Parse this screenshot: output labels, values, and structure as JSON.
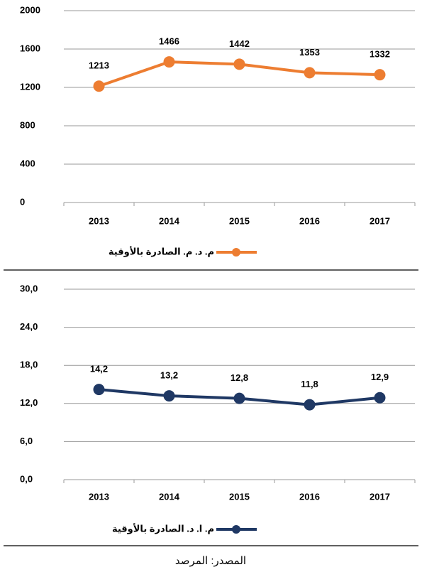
{
  "chart_data": [
    {
      "type": "line",
      "categories": [
        "2013",
        "2014",
        "2015",
        "2016",
        "2017"
      ],
      "series": [
        {
          "name": "م. د. م. الصادرة بالأوقية",
          "color": "#ED7D31",
          "values": [
            1213,
            1466,
            1442,
            1353,
            1332
          ]
        }
      ],
      "ylim": [
        0,
        2000
      ],
      "yticks": [
        0,
        400,
        800,
        1200,
        1600,
        2000
      ],
      "grid": true,
      "legend": "bottom"
    },
    {
      "type": "line",
      "categories": [
        "2013",
        "2014",
        "2015",
        "2016",
        "2017"
      ],
      "series": [
        {
          "name": "م. ا. د. الصادرة بالأوقية",
          "color": "#1F3864",
          "values": [
            14.2,
            13.2,
            12.8,
            11.8,
            12.9
          ],
          "value_labels": [
            "14,2",
            "13,2",
            "12,8",
            "11,8",
            "12,9"
          ]
        }
      ],
      "ylim": [
        0,
        30
      ],
      "yticks": [
        {
          "value": 0,
          "label": "0,0"
        },
        {
          "value": 6,
          "label": "6,0"
        },
        {
          "value": 12,
          "label": "12,0"
        },
        {
          "value": 18,
          "label": "18,0"
        },
        {
          "value": 24,
          "label": "24,0"
        },
        {
          "value": 30,
          "label": "30,0"
        }
      ],
      "grid": true,
      "legend": "bottom"
    }
  ],
  "source": "المصدر: المرصد"
}
